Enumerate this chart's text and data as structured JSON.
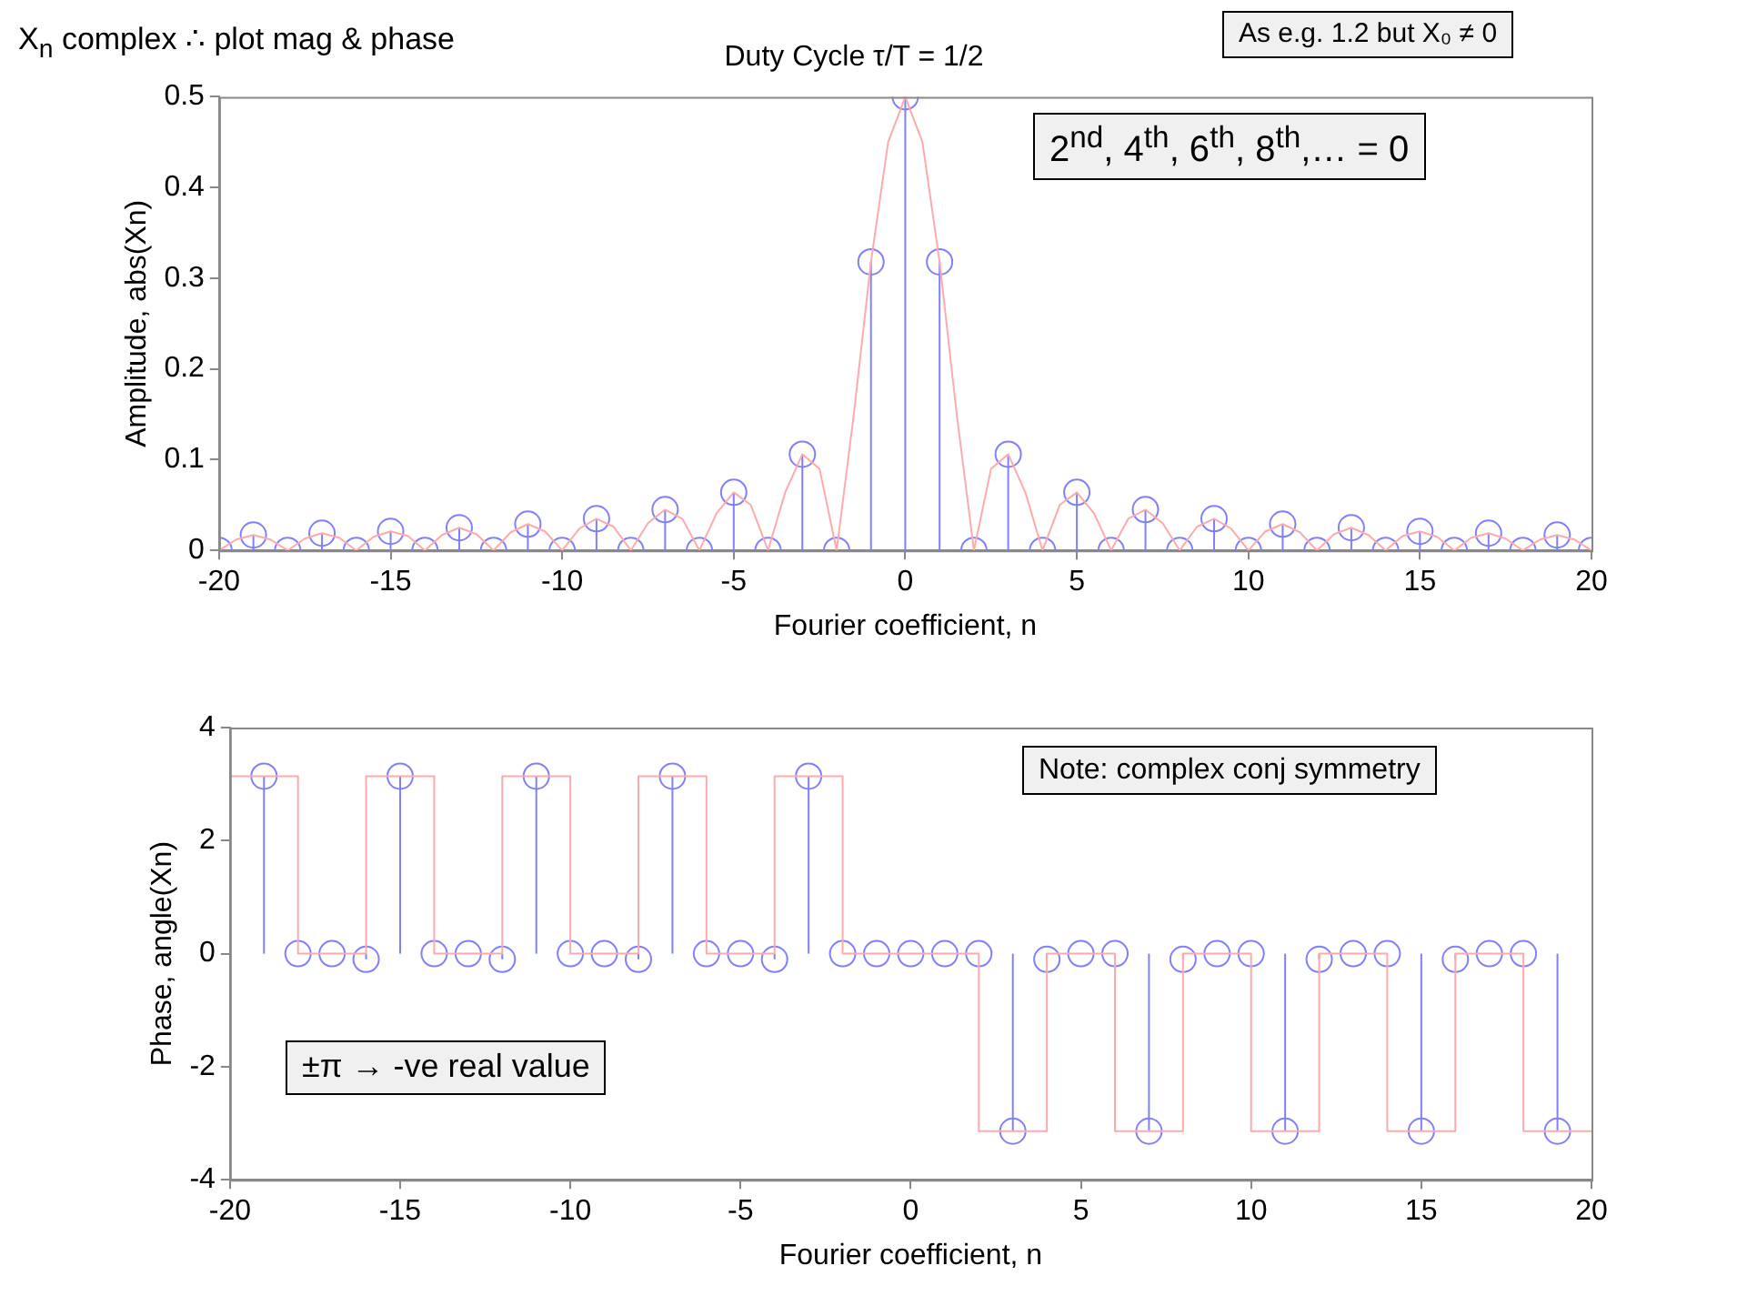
{
  "chart_data": [
    {
      "type": "lollipop",
      "title": "Duty Cycle τ/T = 1/2",
      "xlabel": "Fourier coefficient, n",
      "ylabel": "Amplitude, abs(Xn)",
      "xlim": [
        -20,
        20
      ],
      "xticks": [
        -20,
        -15,
        -10,
        -5,
        0,
        5,
        10,
        15,
        20
      ],
      "ylim": [
        0,
        0.5
      ],
      "yticks": [
        0,
        0.1,
        0.2,
        0.3,
        0.4,
        0.5
      ],
      "grid": false,
      "legend": false,
      "marker": "circle",
      "annotations": [
        "X$_{n}$ complex ∴ plot mag & phase",
        "As e.g. 1.2 but X₀ ≠ 0",
        "2$^{nd}$, 4$^{th}$, 6$^{th}$, 8$^{th}$,… = 0"
      ],
      "series": [
        {
          "type": "line",
          "marker": "none",
          "color": "#ffaaaa",
          "x": [
            -20,
            -19.5,
            -19,
            -18.5,
            -18,
            -17.5,
            -17,
            -16.5,
            -16,
            -15.5,
            -15,
            -14.5,
            -14,
            -13.5,
            -13,
            -12.5,
            -12,
            -11.5,
            -11,
            -10.5,
            -10,
            -9.5,
            -9,
            -8.5,
            -8,
            -7.5,
            -7,
            -6.5,
            -6,
            -5.5,
            -5,
            -4.5,
            -4,
            -3.5,
            -3,
            -2.5,
            -2,
            -1.5,
            -1,
            -0.5,
            0,
            0.5,
            1,
            1.5,
            2,
            2.5,
            3,
            3.5,
            4,
            4.5,
            5,
            5.5,
            6,
            6.5,
            7,
            7.5,
            8,
            8.5,
            9,
            9.5,
            10,
            10.5,
            11,
            11.5,
            12,
            12.5,
            13,
            13.5,
            14,
            14.5,
            15,
            15.5,
            16,
            16.5,
            17,
            17.5,
            18,
            18.5,
            19,
            19.5,
            20
          ],
          "values": [
            0,
            0.012,
            0.017,
            0.012,
            0,
            0.013,
            0.019,
            0.014,
            0,
            0.015,
            0.021,
            0.016,
            0,
            0.017,
            0.025,
            0.018,
            0,
            0.02,
            0.029,
            0.021,
            0,
            0.024,
            0.035,
            0.026,
            0,
            0.03,
            0.045,
            0.035,
            0,
            0.041,
            0.064,
            0.05,
            0,
            0.064,
            0.106,
            0.09,
            0,
            0.15,
            0.318,
            0.45,
            0.5,
            0.45,
            0.318,
            0.15,
            0,
            0.09,
            0.106,
            0.064,
            0,
            0.05,
            0.064,
            0.041,
            0,
            0.035,
            0.045,
            0.03,
            0,
            0.026,
            0.035,
            0.024,
            0,
            0.021,
            0.029,
            0.02,
            0,
            0.018,
            0.025,
            0.017,
            0,
            0.016,
            0.021,
            0.015,
            0,
            0.014,
            0.019,
            0.013,
            0,
            0.012,
            0.017,
            0.012,
            0
          ]
        },
        {
          "color": "#8080ff",
          "x": [
            -20,
            -19,
            -18,
            -17,
            -16,
            -15,
            -14,
            -13,
            -12,
            -11,
            -10,
            -9,
            -8,
            -7,
            -6,
            -5,
            -4,
            -3,
            -2,
            -1,
            0,
            1,
            2,
            3,
            4,
            5,
            6,
            7,
            8,
            9,
            10,
            11,
            12,
            13,
            14,
            15,
            16,
            17,
            18,
            19,
            20
          ],
          "values": [
            0,
            0.017,
            0,
            0.019,
            0,
            0.021,
            0,
            0.025,
            0,
            0.029,
            0,
            0.035,
            0,
            0.045,
            0,
            0.064,
            0,
            0.106,
            0,
            0.318,
            0.5,
            0.318,
            0,
            0.106,
            0,
            0.064,
            0,
            0.045,
            0,
            0.035,
            0,
            0.029,
            0,
            0.025,
            0,
            0.021,
            0,
            0.019,
            0,
            0.017,
            0
          ]
        }
      ]
    },
    {
      "type": "lollipop",
      "xlabel": "Fourier coefficient, n",
      "ylabel": "Phase, angle(Xn)",
      "xlim": [
        -20,
        20
      ],
      "xticks": [
        -20,
        -15,
        -10,
        -5,
        0,
        5,
        10,
        15,
        20
      ],
      "ylim": [
        -4,
        4
      ],
      "yticks": [
        -4,
        -2,
        0,
        2,
        4
      ],
      "grid": false,
      "legend": false,
      "marker": "circle",
      "annotations": [
        "Note: complex conj symmetry",
        "±π → -ve real value"
      ],
      "series": [
        {
          "type": "line",
          "marker": "none",
          "color": "#ffaaaa",
          "x": [
            -20,
            -18,
            -18,
            -16,
            -16,
            -14,
            -14,
            -12,
            -12,
            -10,
            -10,
            -8,
            -8,
            -6,
            -6,
            -4,
            -4,
            -2,
            -2,
            2,
            2,
            4,
            4,
            6,
            6,
            8,
            8,
            10,
            10,
            12,
            12,
            14,
            14,
            16,
            16,
            18,
            18,
            20
          ],
          "values": [
            3.14,
            3.14,
            0,
            0,
            3.14,
            3.14,
            0,
            0,
            3.14,
            3.14,
            0,
            0,
            3.14,
            3.14,
            0,
            0,
            3.14,
            3.14,
            0,
            0,
            -3.14,
            -3.14,
            0,
            0,
            -3.14,
            -3.14,
            0,
            0,
            -3.14,
            -3.14,
            0,
            0,
            -3.14,
            -3.14,
            0,
            0,
            -3.14,
            -3.14
          ]
        },
        {
          "color": "#8080ff",
          "x": [
            -19,
            -18,
            -17,
            -16,
            -15,
            -14,
            -13,
            -12,
            -11,
            -10,
            -9,
            -8,
            -7,
            -6,
            -5,
            -4,
            -3,
            -2,
            -1,
            0,
            1,
            2,
            3,
            4,
            5,
            6,
            7,
            8,
            9,
            10,
            11,
            12,
            13,
            14,
            15,
            16,
            17,
            18,
            19
          ],
          "values": [
            3.14,
            0,
            0,
            -0.1,
            3.14,
            0,
            0,
            -0.1,
            3.14,
            0,
            0,
            -0.1,
            3.14,
            0,
            0,
            -0.1,
            3.14,
            0,
            0,
            0,
            0,
            0,
            -3.14,
            -0.1,
            0,
            0,
            -3.14,
            -0.1,
            0,
            0,
            -3.14,
            -0.1,
            0,
            0,
            -3.14,
            -0.1,
            0,
            0,
            -3.14
          ]
        }
      ]
    }
  ]
}
